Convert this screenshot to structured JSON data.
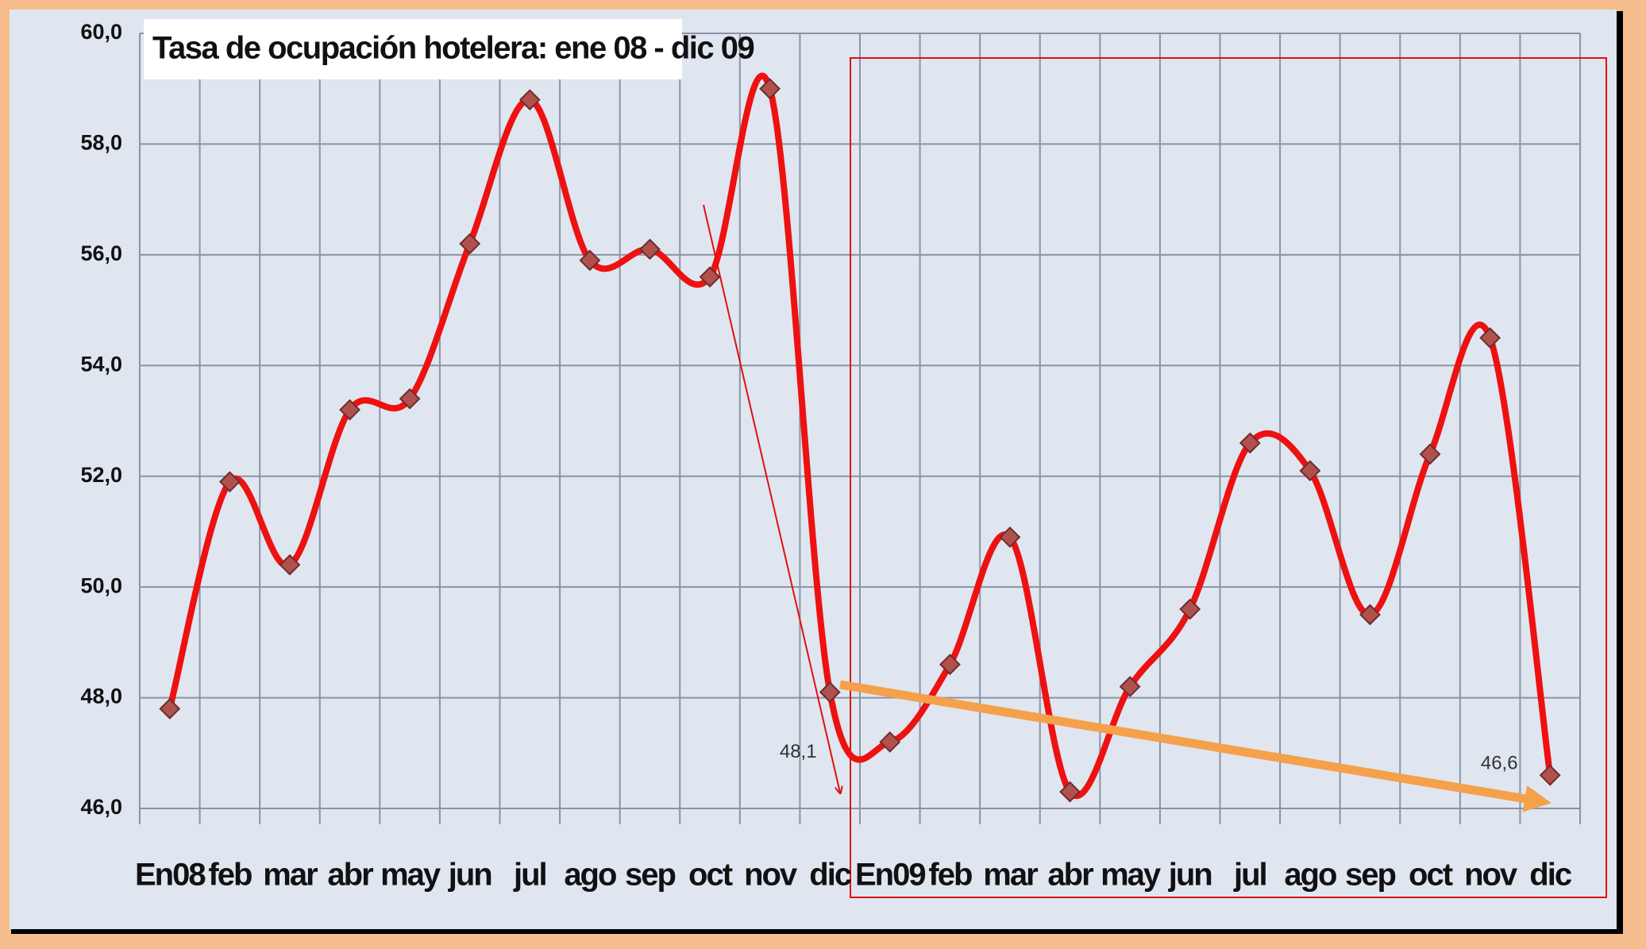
{
  "chart_data": {
    "type": "line",
    "title": "Tasa de ocupación  hotelera:  ene 08 - dic 09",
    "categories": [
      "En08",
      "feb",
      "mar",
      "abr",
      "may",
      "jun",
      "jul",
      "ago",
      "sep",
      "oct",
      "nov",
      "dic",
      "En09",
      "feb",
      "mar",
      "abr",
      "may",
      "jun",
      "jul",
      "ago",
      "sep",
      "oct",
      "nov",
      "dic"
    ],
    "values": [
      47.8,
      51.9,
      50.4,
      53.2,
      53.4,
      56.2,
      58.8,
      55.9,
      56.1,
      55.6,
      59.0,
      48.1,
      47.2,
      48.6,
      50.9,
      46.3,
      48.2,
      49.6,
      52.6,
      52.1,
      49.5,
      52.4,
      54.5,
      46.6
    ],
    "value_labels": [
      null,
      null,
      null,
      null,
      null,
      null,
      null,
      null,
      null,
      null,
      null,
      "48,1",
      null,
      null,
      null,
      null,
      null,
      null,
      null,
      null,
      null,
      null,
      null,
      "46,6"
    ],
    "color": "#ee1111",
    "marker_color": "#b0514e",
    "ylim": [
      46,
      60
    ],
    "yticks": [
      {
        "value": 46,
        "label": "46,0"
      },
      {
        "value": 48,
        "label": "48,0"
      },
      {
        "value": 50,
        "label": "50,0"
      },
      {
        "value": 52,
        "label": "52,0"
      },
      {
        "value": 54,
        "label": "54,0"
      },
      {
        "value": 56,
        "label": "56,0"
      },
      {
        "value": 58,
        "label": "58,0"
      },
      {
        "value": 60,
        "label": "60,0"
      }
    ],
    "grid": true
  }
}
